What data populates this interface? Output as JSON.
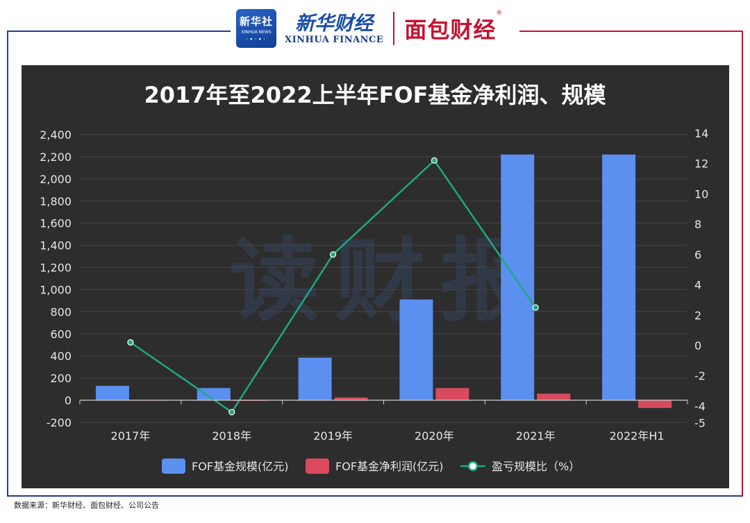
{
  "header": {
    "xinhua_logo_cn": "新华社",
    "xinhua_logo_en": "XINHUA NEWS",
    "finance_cn": "新华财经",
    "finance_en": "XINHUA FINANCE",
    "partner_cn": "面包财经",
    "partner_reg": "®"
  },
  "watermark": "读财报",
  "footer": {
    "source": "数据来源：新华财经、面包财经、公司公告"
  },
  "colors": {
    "scale_bar": "#5b8ff0",
    "profit_bar": "#d94a5e",
    "ratio_line": "#1fa884",
    "panel_bg": "#2d2d2d",
    "frame_blue": "#1f3d8a",
    "frame_red": "#c8102e"
  },
  "chart_data": {
    "type": "bar",
    "title": "2017年至2022上半年FOF基金净利润、规模",
    "categories": [
      "2017年",
      "2018年",
      "2019年",
      "2020年",
      "2021年",
      "2022年H1"
    ],
    "left_axis": {
      "ylim": [
        -200,
        2400
      ],
      "ticks": [
        -200,
        0,
        200,
        400,
        600,
        800,
        1000,
        1200,
        1400,
        1600,
        1800,
        2000,
        2200,
        2400
      ],
      "tick_labels": [
        "-200",
        "0",
        "200",
        "400",
        "600",
        "800",
        "1,000",
        "1,200",
        "1,400",
        "1,600",
        "1,800",
        "2,000",
        "2,200",
        "2,400"
      ]
    },
    "right_axis": {
      "ylim": [
        -5,
        14
      ],
      "ticks": [
        -4,
        -2,
        0,
        2,
        4,
        6,
        8,
        10,
        12,
        14
      ],
      "tick_labels": [
        "-4",
        "-2",
        "0",
        "2",
        "4",
        "6",
        "8",
        "10",
        "12",
        "14"
      ],
      "extra_tick": {
        "value": -5,
        "label": "-5"
      }
    },
    "series": [
      {
        "name": "FOF基金规模(亿元)",
        "type": "bar",
        "axis": "left",
        "values": [
          130,
          110,
          385,
          910,
          2220,
          2220
        ]
      },
      {
        "name": "FOF基金净利润(亿元)",
        "type": "bar",
        "axis": "left",
        "values": [
          2,
          -5,
          25,
          110,
          60,
          -70
        ]
      },
      {
        "name": "盈亏规模比（%）",
        "type": "line",
        "axis": "right",
        "values": [
          0.2,
          -4.4,
          6.0,
          12.2,
          2.5,
          null
        ]
      }
    ],
    "grid": true,
    "legend": "bottom"
  }
}
